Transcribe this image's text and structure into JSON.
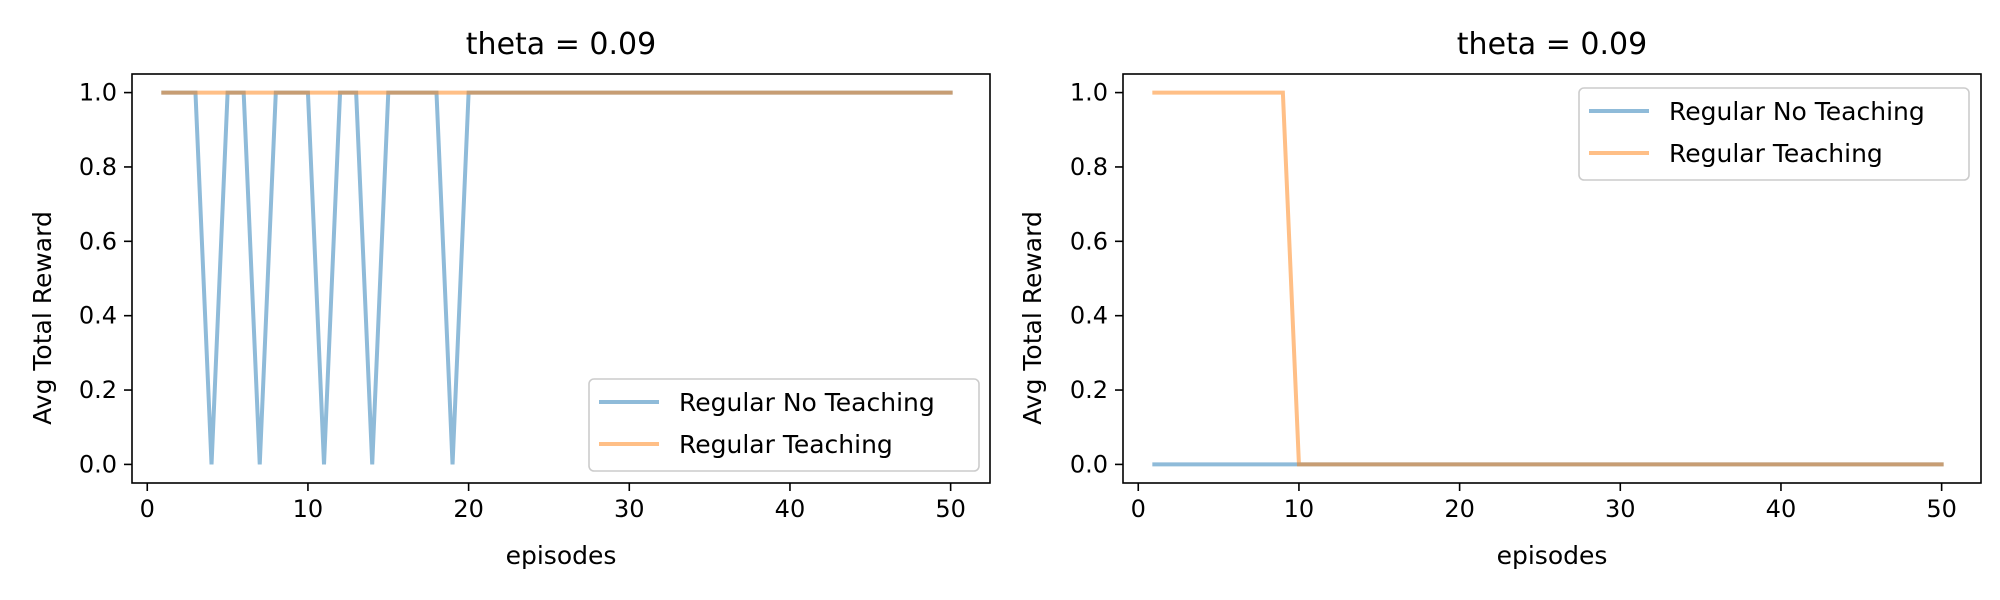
{
  "chart_data": [
    {
      "type": "line",
      "title": "theta = 0.09",
      "xlabel": "episodes",
      "ylabel": "Avg Total Reward",
      "xlim": [
        -0.95,
        52.45
      ],
      "ylim": [
        -0.05,
        1.05
      ],
      "xticks": [
        0,
        10,
        20,
        30,
        40,
        50
      ],
      "yticks": [
        0.0,
        0.2,
        0.4,
        0.6,
        0.8,
        1.0
      ],
      "xtick_labels": [
        "0",
        "10",
        "20",
        "30",
        "40",
        "50"
      ],
      "ytick_labels": [
        "0.0",
        "0.2",
        "0.4",
        "0.6",
        "0.8",
        "1.0"
      ],
      "grid": false,
      "legend_position": "bottom-right",
      "series": [
        {
          "name": "Regular No Teaching",
          "color": "#1f77b4",
          "x": [
            1,
            2,
            3,
            4,
            5,
            6,
            7,
            8,
            9,
            10,
            11,
            12,
            13,
            14,
            15,
            16,
            17,
            18,
            19,
            20,
            21,
            22,
            23,
            24,
            25,
            26,
            27,
            28,
            29,
            30,
            31,
            32,
            33,
            34,
            35,
            36,
            37,
            38,
            39,
            40,
            41,
            42,
            43,
            44,
            45,
            46,
            47,
            48,
            49,
            50
          ],
          "values": [
            1,
            1,
            1,
            0,
            1,
            1,
            0,
            1,
            1,
            1,
            0,
            1,
            1,
            0,
            1,
            1,
            1,
            1,
            0,
            1,
            1,
            1,
            1,
            1,
            1,
            1,
            1,
            1,
            1,
            1,
            1,
            1,
            1,
            1,
            1,
            1,
            1,
            1,
            1,
            1,
            1,
            1,
            1,
            1,
            1,
            1,
            1,
            1,
            1,
            1
          ]
        },
        {
          "name": "Regular Teaching",
          "color": "#ff7f0e",
          "x": [
            1,
            2,
            3,
            4,
            5,
            6,
            7,
            8,
            9,
            10,
            11,
            12,
            13,
            14,
            15,
            16,
            17,
            18,
            19,
            20,
            21,
            22,
            23,
            24,
            25,
            26,
            27,
            28,
            29,
            30,
            31,
            32,
            33,
            34,
            35,
            36,
            37,
            38,
            39,
            40,
            41,
            42,
            43,
            44,
            45,
            46,
            47,
            48,
            49,
            50
          ],
          "values": [
            1,
            1,
            1,
            1,
            1,
            1,
            1,
            1,
            1,
            1,
            1,
            1,
            1,
            1,
            1,
            1,
            1,
            1,
            1,
            1,
            1,
            1,
            1,
            1,
            1,
            1,
            1,
            1,
            1,
            1,
            1,
            1,
            1,
            1,
            1,
            1,
            1,
            1,
            1,
            1,
            1,
            1,
            1,
            1,
            1,
            1,
            1,
            1,
            1,
            1
          ]
        }
      ]
    },
    {
      "type": "line",
      "title": "theta = 0.09",
      "xlabel": "episodes",
      "ylabel": "Avg Total Reward",
      "xlim": [
        -0.95,
        52.45
      ],
      "ylim": [
        -0.05,
        1.05
      ],
      "xticks": [
        0,
        10,
        20,
        30,
        40,
        50
      ],
      "yticks": [
        0.0,
        0.2,
        0.4,
        0.6,
        0.8,
        1.0
      ],
      "xtick_labels": [
        "0",
        "10",
        "20",
        "30",
        "40",
        "50"
      ],
      "ytick_labels": [
        "0.0",
        "0.2",
        "0.4",
        "0.6",
        "0.8",
        "1.0"
      ],
      "grid": false,
      "legend_position": "top-right",
      "series": [
        {
          "name": "Regular No Teaching",
          "color": "#1f77b4",
          "x": [
            1,
            2,
            3,
            4,
            5,
            6,
            7,
            8,
            9,
            10,
            11,
            12,
            13,
            14,
            15,
            16,
            17,
            18,
            19,
            20,
            21,
            22,
            23,
            24,
            25,
            26,
            27,
            28,
            29,
            30,
            31,
            32,
            33,
            34,
            35,
            36,
            37,
            38,
            39,
            40,
            41,
            42,
            43,
            44,
            45,
            46,
            47,
            48,
            49,
            50
          ],
          "values": [
            0,
            0,
            0,
            0,
            0,
            0,
            0,
            0,
            0,
            0,
            0,
            0,
            0,
            0,
            0,
            0,
            0,
            0,
            0,
            0,
            0,
            0,
            0,
            0,
            0,
            0,
            0,
            0,
            0,
            0,
            0,
            0,
            0,
            0,
            0,
            0,
            0,
            0,
            0,
            0,
            0,
            0,
            0,
            0,
            0,
            0,
            0,
            0,
            0,
            0
          ]
        },
        {
          "name": "Regular Teaching",
          "color": "#ff7f0e",
          "x": [
            1,
            2,
            3,
            4,
            5,
            6,
            7,
            8,
            9,
            10,
            11,
            12,
            13,
            14,
            15,
            16,
            17,
            18,
            19,
            20,
            21,
            22,
            23,
            24,
            25,
            26,
            27,
            28,
            29,
            30,
            31,
            32,
            33,
            34,
            35,
            36,
            37,
            38,
            39,
            40,
            41,
            42,
            43,
            44,
            45,
            46,
            47,
            48,
            49,
            50
          ],
          "values": [
            1,
            1,
            1,
            1,
            1,
            1,
            1,
            1,
            1,
            0,
            0,
            0,
            0,
            0,
            0,
            0,
            0,
            0,
            0,
            0,
            0,
            0,
            0,
            0,
            0,
            0,
            0,
            0,
            0,
            0,
            0,
            0,
            0,
            0,
            0,
            0,
            0,
            0,
            0,
            0,
            0,
            0,
            0,
            0,
            0,
            0,
            0,
            0,
            0,
            0
          ]
        }
      ]
    }
  ]
}
